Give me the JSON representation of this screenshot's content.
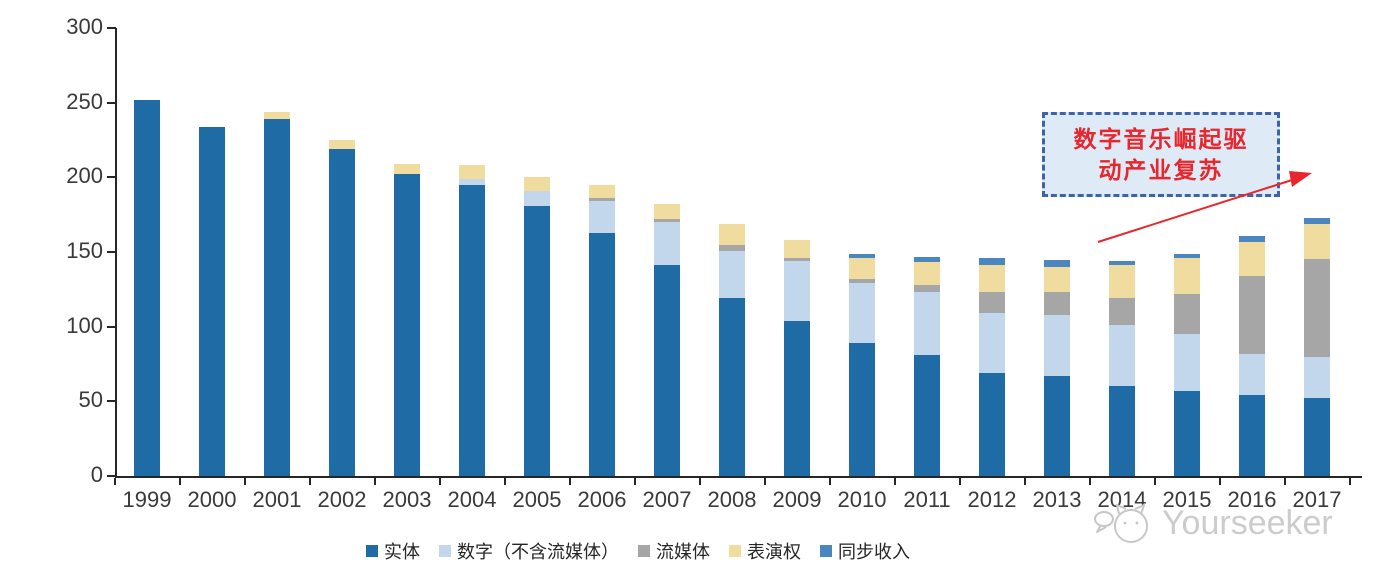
{
  "chart_data": {
    "type": "bar",
    "stacked": true,
    "title": "",
    "xlabel": "",
    "ylabel": "",
    "ylim": [
      0,
      300
    ],
    "yticks": [
      0,
      50,
      100,
      150,
      200,
      250,
      300
    ],
    "grid": false,
    "legend_position": "bottom",
    "categories": [
      "1999",
      "2000",
      "2001",
      "2002",
      "2003",
      "2004",
      "2005",
      "2006",
      "2007",
      "2008",
      "2009",
      "2010",
      "2011",
      "2012",
      "2013",
      "2014",
      "2015",
      "2016",
      "2017"
    ],
    "series": [
      {
        "name": "实体",
        "color": "#1f6ba6",
        "values": [
          252,
          234,
          239,
          219,
          202,
          195,
          181,
          163,
          141,
          119,
          104,
          89,
          81,
          69,
          67,
          60,
          57,
          54,
          52
        ]
      },
      {
        "name": "数字（不含流媒体）",
        "color": "#c2d7ec",
        "values": [
          0,
          0,
          0,
          0,
          0,
          4,
          10,
          21,
          29,
          32,
          40,
          40,
          42,
          40,
          41,
          41,
          38,
          28,
          28
        ]
      },
      {
        "name": "流媒体",
        "color": "#a6a6a6",
        "values": [
          0,
          0,
          0,
          0,
          0,
          0,
          0,
          2,
          2,
          4,
          2,
          3,
          5,
          14,
          15,
          18,
          27,
          52,
          65
        ]
      },
      {
        "name": "表演权",
        "color": "#efdc9e",
        "values": [
          0,
          0,
          5,
          6,
          7,
          9,
          9,
          9,
          10,
          14,
          12,
          14,
          15,
          18,
          17,
          22,
          24,
          23,
          24
        ]
      },
      {
        "name": "同步收入",
        "color": "#4c86c0",
        "values": [
          0,
          0,
          0,
          0,
          0,
          0,
          0,
          0,
          0,
          0,
          0,
          3,
          4,
          5,
          5,
          3,
          3,
          4,
          4
        ]
      }
    ]
  },
  "annotation": {
    "lines": [
      "数字音乐崛起驱",
      "动产业复苏"
    ],
    "text_color": "#e8262d",
    "box_fill": "#deeaf6",
    "box_border": "#3d63a8",
    "arrow_color": "#e8262d"
  },
  "watermark": {
    "text": "Yourseeker",
    "icon": "cat-logo-icon",
    "color": "#c7c7c7"
  }
}
